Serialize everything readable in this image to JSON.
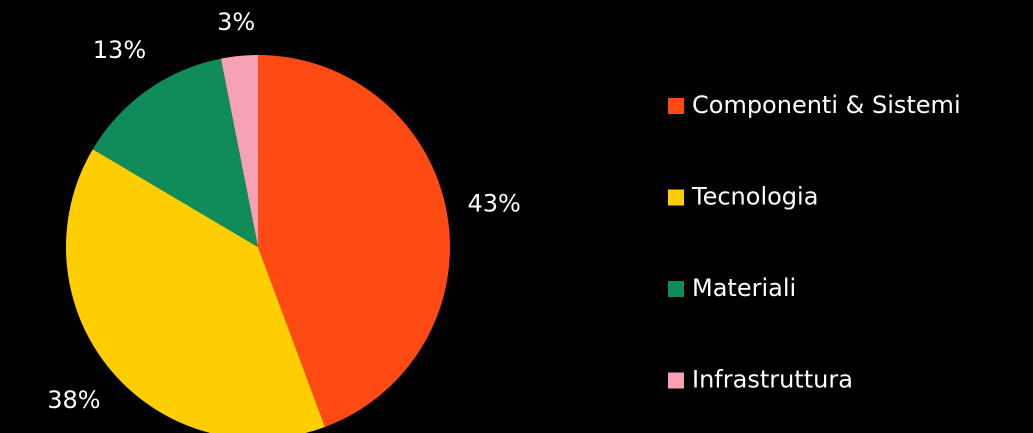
{
  "chart_data": {
    "type": "pie",
    "categories": [
      "Componenti & Sistemi",
      "Tecnologia",
      "Materiali",
      "Infrastruttura"
    ],
    "values": [
      43,
      38,
      13,
      3
    ],
    "value_labels": [
      "43%",
      "38%",
      "13%",
      "3%"
    ],
    "colors": [
      "#ff4a14",
      "#ffce00",
      "#0f8c5a",
      "#f7a1b4"
    ],
    "legend": "right"
  }
}
